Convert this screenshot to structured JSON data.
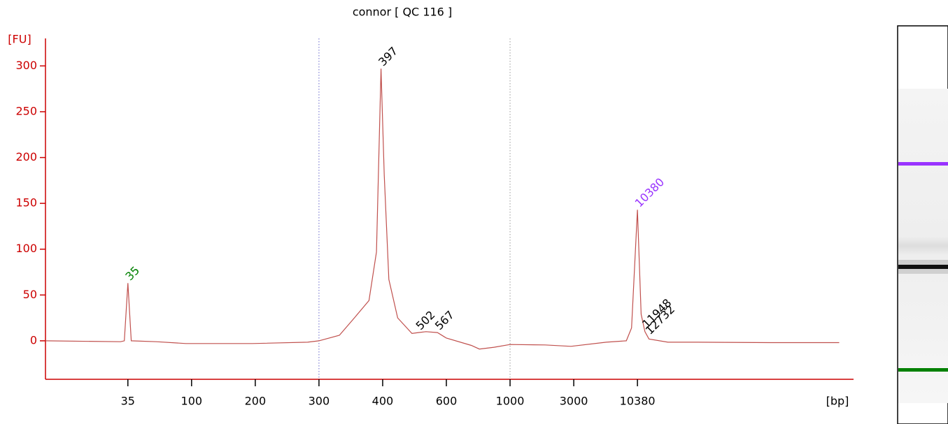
{
  "chart_data": {
    "type": "line",
    "title": "connor  [ QC 116 ]",
    "y_label": "[FU]",
    "x_label": "[bp]",
    "color": "#c0504d",
    "axis_color": "#cc0000",
    "x": [
      9,
      31,
      33,
      35,
      37,
      56,
      91,
      194,
      279,
      300,
      329,
      352,
      376,
      389,
      397,
      404,
      416,
      440,
      482,
      502,
      527,
      567,
      600,
      733,
      782,
      880,
      1000,
      1824,
      2860,
      5660,
      8350,
      9250,
      10380,
      11150,
      12000,
      13000,
      18800,
      33400,
      139000,
      529000
    ],
    "values": [
      0,
      -1,
      0,
      63,
      0,
      -1,
      -3,
      -3,
      -1.5,
      0,
      6,
      25,
      44,
      97,
      297,
      181,
      67,
      25,
      8,
      9,
      10,
      9,
      3,
      -5,
      -9,
      -7,
      -4,
      -4.5,
      -6,
      -1.5,
      0,
      14,
      143,
      29,
      10,
      2,
      -1.5,
      -1.5,
      -2,
      -2
    ],
    "xlim": [
      9,
      700000
    ],
    "xticks": [
      35,
      100,
      200,
      300,
      400,
      600,
      1000,
      3000,
      10380
    ],
    "ylim": [
      -42,
      330
    ],
    "yticks": [
      0,
      50,
      100,
      150,
      200,
      250,
      300
    ],
    "region_lines": [
      300,
      1000
    ],
    "peak_labels": [
      35,
      397,
      502,
      567,
      10380,
      11948,
      12732
    ],
    "peak_label_colors": [
      "#008000",
      "#000000",
      "#000000",
      "#000000",
      "#9933ff",
      "#000000",
      "#000000"
    ]
  }
}
